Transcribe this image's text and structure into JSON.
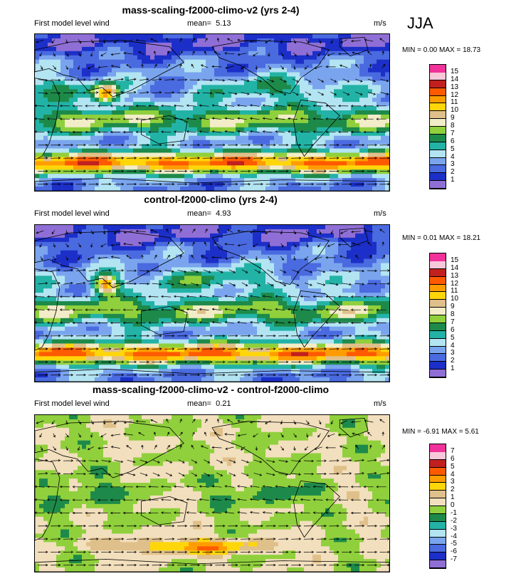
{
  "season": "JJA",
  "colors": {
    "wind_scale": [
      "#8f6fd6",
      "#1c2fc8",
      "#4a6ae0",
      "#7aa5ee",
      "#b3e4f2",
      "#22b3a6",
      "#1d8a4a",
      "#8fd03c",
      "#f2ecc8",
      "#e0c08a",
      "#ffd60a",
      "#ff9d00",
      "#ff5a00",
      "#c1201e",
      "#f7c8d8",
      "#f0329a"
    ],
    "diff_scale": [
      "#8f6fd6",
      "#1c2fc8",
      "#4a6ae0",
      "#7aa5ee",
      "#b3e4f2",
      "#22b3a6",
      "#1d8a4a",
      "#8fd03c",
      "#f2dfbd",
      "#e0c08a",
      "#ffd60a",
      "#ff9d00",
      "#ff5a00",
      "#c1201e",
      "#f7c8d8",
      "#f0329a"
    ]
  },
  "chart_data": [
    {
      "type": "heatmap",
      "title": "mass-scaling-f2000-climo-v2 (yrs 2-4)",
      "subtitle_left": "First model level wind",
      "mean_label": "mean=",
      "mean_value": "5.13",
      "units": "m/s",
      "min_label": "MIN = ",
      "min_value": "0.00",
      "max_label": "MAX = ",
      "max_value": "18.73",
      "colorbar_labels": [
        "1",
        "2",
        "3",
        "4",
        "5",
        "6",
        "7",
        "8",
        "9",
        "10",
        "11",
        "12",
        "13",
        "14",
        "15"
      ],
      "scale": "wind",
      "pattern_seed": 1
    },
    {
      "type": "heatmap",
      "title": "control-f2000-climo (yrs 2-4)",
      "subtitle_left": "First model level wind",
      "mean_label": "mean=",
      "mean_value": "4.93",
      "units": "m/s",
      "min_label": "MIN = ",
      "min_value": "0.01",
      "max_label": "MAX = ",
      "max_value": "18.21",
      "colorbar_labels": [
        "1",
        "2",
        "3",
        "4",
        "5",
        "6",
        "7",
        "8",
        "9",
        "10",
        "11",
        "12",
        "13",
        "14",
        "15"
      ],
      "scale": "wind",
      "pattern_seed": 2
    },
    {
      "type": "heatmap",
      "title": "mass-scaling-f2000-climo-v2 - control-f2000-climo",
      "subtitle_left": "First model level wind",
      "mean_label": "mean=",
      "mean_value": "0.21",
      "units": "m/s",
      "min_label": "MIN = ",
      "min_value": "-6.91",
      "max_label": "MAX = ",
      "max_value": "5.61",
      "colorbar_labels": [
        "-7",
        "-6",
        "-5",
        "-4",
        "-3",
        "-2",
        "-1",
        "0",
        "1",
        "2",
        "3",
        "4",
        "5",
        "6",
        "7"
      ],
      "scale": "diff",
      "pattern_seed": 3
    }
  ]
}
